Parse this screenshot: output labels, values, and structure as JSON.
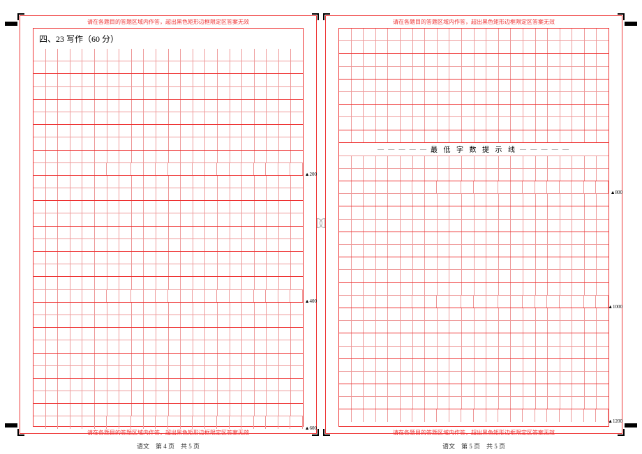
{
  "notice_text": "请在各题目的答题区域内作答，超出黑色矩形边框限定区答案无效",
  "heading": "四、23 写作（60 分）",
  "divider_label": "最 低 字 数 提 示 线",
  "markers": {
    "m200": "200",
    "m400": "400",
    "m600": "600",
    "m800": "800",
    "m1000": "1000",
    "m1200": "1200"
  },
  "footer_left": "语文　第 4 页　共 5 页",
  "footer_right": "语文　第 5 页　共 5 页",
  "grid": {
    "cols": 22,
    "left_rows": 30,
    "right_rows_upper": 9,
    "right_rows_lower": 21,
    "line_color": "#e99",
    "major_color": "#e33",
    "background": "#ffffff"
  }
}
